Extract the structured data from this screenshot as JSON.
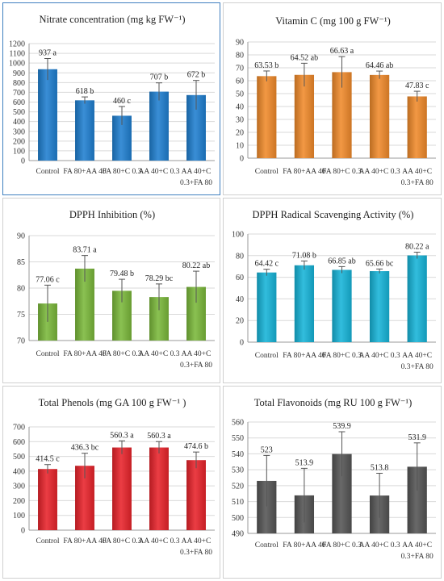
{
  "chart_data": [
    {
      "type": "bar",
      "title": "Nitrate concentration (mg kg FW⁻¹)",
      "categories": [
        [
          "Control"
        ],
        [
          "FA 80+AA 40"
        ],
        [
          "FA 80+C 0.3"
        ],
        [
          "AA 40+C 0.3"
        ],
        [
          "AA 40+C",
          "0.3+FA 80"
        ]
      ],
      "values": [
        937,
        618,
        460,
        707,
        672
      ],
      "errors": [
        110,
        35,
        95,
        90,
        150
      ],
      "data_labels": [
        "937 a",
        "618 b",
        "460 c",
        "707 b",
        "672 b"
      ],
      "yticks": [
        0,
        100,
        200,
        300,
        400,
        500,
        600,
        700,
        800,
        900,
        1000,
        1100,
        1200
      ],
      "ylim": [
        0,
        1200
      ],
      "color": "#1f7fd0"
    },
    {
      "type": "bar",
      "title": "Vitamin C (mg 100 g FW⁻¹)",
      "categories": [
        [
          "Control"
        ],
        [
          "FA 80+AA 40"
        ],
        [
          "FA 80+C 0.3"
        ],
        [
          "AA 40+C 0.3"
        ],
        [
          "AA 40+C",
          "0.3+FA 80"
        ]
      ],
      "values": [
        63.53,
        64.52,
        66.63,
        64.46,
        47.83
      ],
      "errors": [
        4,
        9,
        12,
        3,
        4
      ],
      "data_labels": [
        "63.53 b",
        "64.52 ab",
        "66.63 a",
        "64.46 ab",
        "47.83 c"
      ],
      "yticks": [
        0,
        10,
        20,
        30,
        40,
        50,
        60,
        70,
        80,
        90
      ],
      "ylim": [
        0,
        90
      ],
      "color": "#f08a2a"
    },
    {
      "type": "bar",
      "title": "DPPH Inhibition (%)",
      "categories": [
        [
          "Control"
        ],
        [
          "FA 80+AA 40"
        ],
        [
          "FA 80+C 0.3"
        ],
        [
          "AA 40+C 0.3"
        ],
        [
          "AA 40+C",
          "0.3+FA 80"
        ]
      ],
      "values": [
        77.06,
        83.71,
        79.48,
        78.29,
        80.22
      ],
      "errors": [
        3.5,
        2.5,
        2.2,
        2.5,
        3.0
      ],
      "data_labels": [
        "77.06 c",
        "83.71 a",
        "79.48 b",
        "78.29 bc",
        "80.22 ab"
      ],
      "yticks": [
        70,
        75,
        80,
        85,
        90
      ],
      "ylim": [
        70,
        90
      ],
      "color": "#7ab83a"
    },
    {
      "type": "bar",
      "title": "DPPH Radical Scavenging Activity (%)",
      "categories": [
        [
          "Control"
        ],
        [
          "FA 80+AA 40"
        ],
        [
          "FA 80+C 0.3"
        ],
        [
          "AA 40+C 0.3"
        ],
        [
          "AA 40+C",
          "0.3+FA 80"
        ]
      ],
      "values": [
        64.42,
        71.08,
        66.85,
        65.66,
        80.22
      ],
      "errors": [
        3,
        4,
        3,
        2,
        3
      ],
      "data_labels": [
        "64.42 c",
        "71.08 b",
        "66.85 ab",
        "65.66 bc",
        "80.22 a"
      ],
      "yticks": [
        0,
        20,
        40,
        60,
        80,
        100
      ],
      "ylim": [
        0,
        100
      ],
      "color": "#16b4d8"
    },
    {
      "type": "bar",
      "title": "Total Phenols (mg GA 100 g FW⁻¹ )",
      "categories": [
        [
          "Control"
        ],
        [
          "FA 80+AA 40"
        ],
        [
          "FA 80+C 0.3"
        ],
        [
          "AA 40+C 0.3"
        ],
        [
          "AA 40+C",
          "0.3+FA 80"
        ]
      ],
      "values": [
        414.5,
        436.3,
        560.3,
        560.3,
        474.6
      ],
      "errors": [
        30,
        85,
        45,
        40,
        55
      ],
      "data_labels": [
        "414.5 c",
        "436.3 bc",
        "560.3 a",
        "560.3 a",
        "474.6 b"
      ],
      "yticks": [
        0,
        100,
        200,
        300,
        400,
        500,
        600,
        700
      ],
      "ylim": [
        0,
        700
      ],
      "color": "#e8232a"
    },
    {
      "type": "bar",
      "title": "Total Flavonoids (mg RU 100 g FW⁻¹)",
      "categories": [
        [
          "Control"
        ],
        [
          "FA 80+AA 40"
        ],
        [
          "FA 80+C 0.3"
        ],
        [
          "AA 40+C 0.3"
        ],
        [
          "AA 40+C",
          "0.3+FA 80"
        ]
      ],
      "values": [
        523,
        513.9,
        539.9,
        513.8,
        531.9
      ],
      "errors": [
        16,
        17,
        14,
        14,
        15
      ],
      "data_labels": [
        "523",
        "513.9",
        "539.9",
        "513.8",
        "531.9"
      ],
      "yticks": [
        490,
        500,
        510,
        520,
        530,
        540,
        550,
        560
      ],
      "ylim": [
        490,
        560
      ],
      "color": "#555555"
    }
  ]
}
